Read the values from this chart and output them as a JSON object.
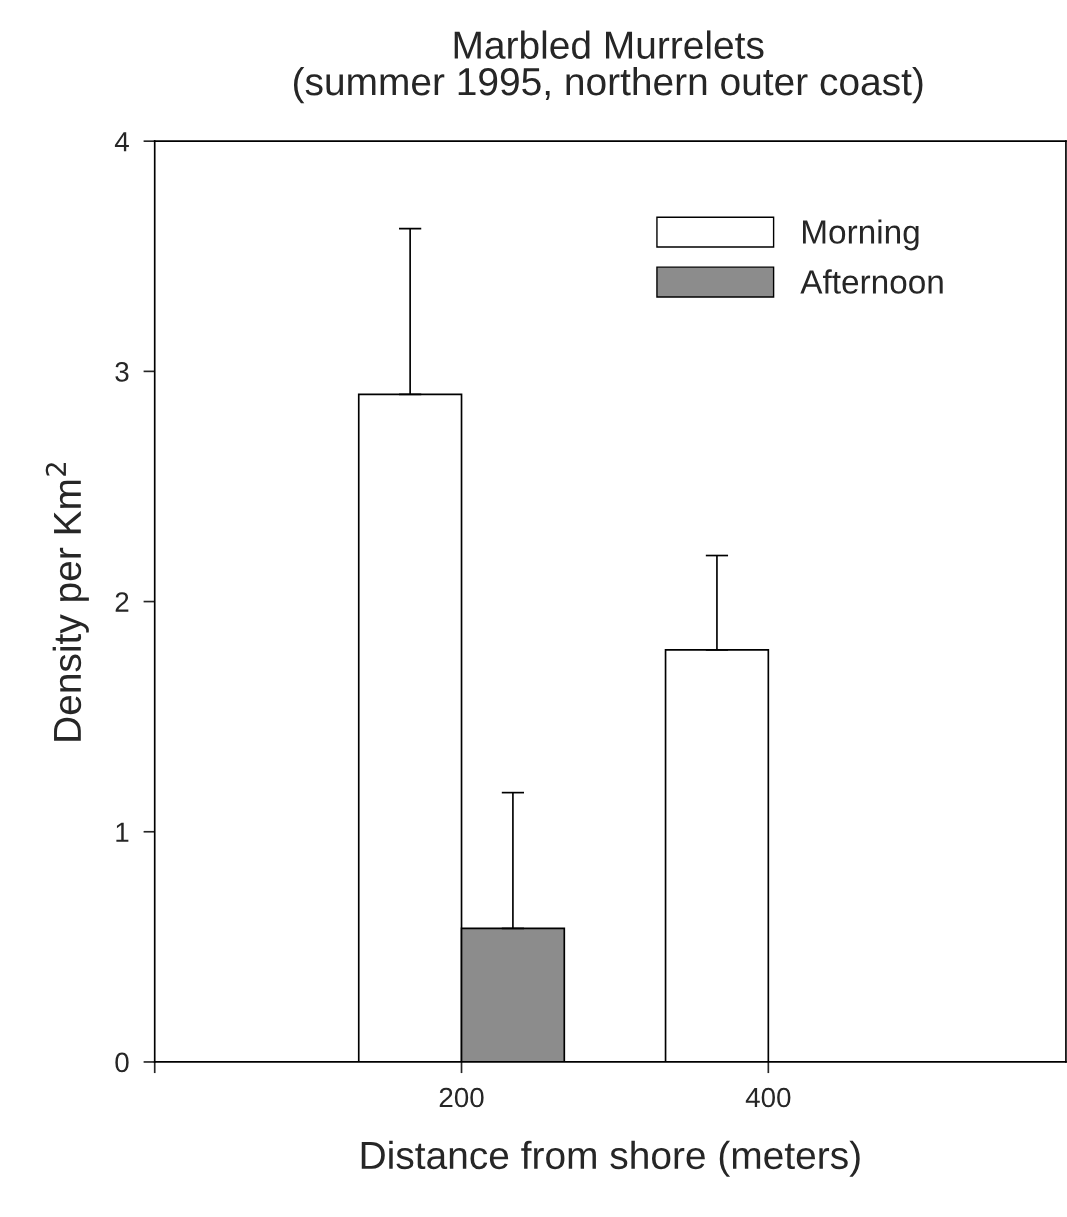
{
  "chart_data": {
    "type": "bar",
    "title": "Marbled Murrelets",
    "subtitle": "(summer 1995, northern outer coast)",
    "xlabel": "Distance from shore (meters)",
    "ylabel": "Density per Km$^{2}$",
    "x": [
      200,
      400
    ],
    "series": [
      {
        "name": "Morning",
        "color": "#ffffff",
        "values": [
          2.9,
          1.79
        ],
        "errors": [
          [
            2.9,
            3.62
          ],
          [
            1.79,
            2.2
          ]
        ]
      },
      {
        "name": "Afternoon",
        "color": "#8c8c8c",
        "values": [
          0.58,
          null
        ],
        "errors": [
          [
            0.58,
            1.17
          ],
          null
        ]
      }
    ],
    "xlim": [
      0,
      594
    ],
    "xticks": [
      {
        "value": 0,
        "label": null
      },
      200,
      400
    ],
    "ylim": [
      0,
      4
    ],
    "yticks": [
      0,
      1,
      2,
      3,
      4
    ],
    "grid": false,
    "legend": "top right"
  }
}
